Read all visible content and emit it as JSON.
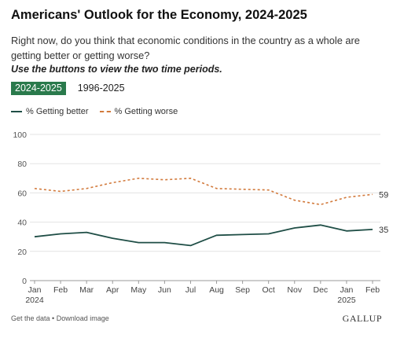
{
  "header": {
    "title": "Americans' Outlook for the Economy, 2024-2025",
    "subtitle": "Right now, do you think that economic conditions in the country as a whole are getting better or getting worse?",
    "instruction": "Use the buttons to view the two time periods."
  },
  "toggles": {
    "active": "2024-2025",
    "inactive": "1996-2025"
  },
  "footer": {
    "get_data": "Get the data",
    "separator": " • ",
    "download": "Download image",
    "brand": "GALLUP"
  },
  "chart_data": {
    "type": "line",
    "x": [
      "Jan",
      "Feb",
      "Mar",
      "Apr",
      "May",
      "Jun",
      "Jul",
      "Aug",
      "Sep",
      "Oct",
      "Nov",
      "Dec",
      "Jan",
      "Feb"
    ],
    "x_sublabels": {
      "0": "2024",
      "12": "2025"
    },
    "yticks": [
      0,
      20,
      40,
      60,
      80,
      100
    ],
    "ylim": [
      0,
      100
    ],
    "grid": true,
    "legend_position": "top-left",
    "series": [
      {
        "name": "% Getting better",
        "values": [
          30,
          32,
          33,
          29,
          26,
          26,
          24,
          31,
          31.5,
          32,
          36,
          38,
          34,
          35
        ],
        "color": "#1f4e46",
        "dash": false,
        "end_label": "35"
      },
      {
        "name": "% Getting worse",
        "values": [
          63,
          61,
          63,
          67,
          70,
          69,
          70,
          63,
          62.5,
          62,
          55,
          52,
          57,
          59
        ],
        "color": "#d27a3c",
        "dash": true,
        "end_label": "59"
      }
    ]
  }
}
